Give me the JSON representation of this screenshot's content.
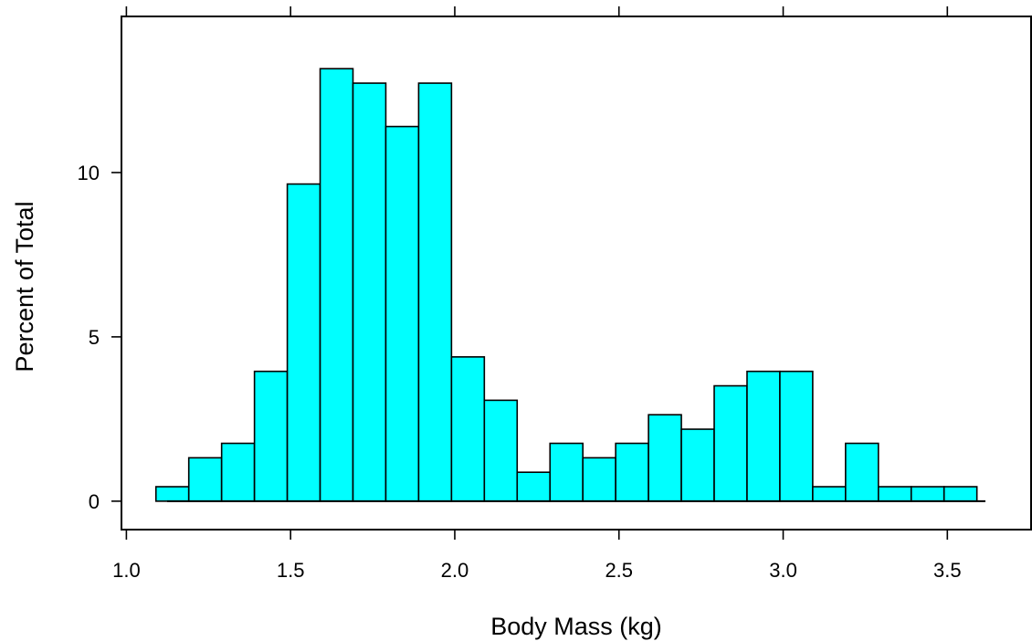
{
  "chart_data": {
    "type": "bar",
    "title": "",
    "xlabel": "Body Mass (kg)",
    "ylabel": "Percent of Total",
    "xlim": [
      0.985,
      3.755
    ],
    "ylim": [
      -0.865,
      14.75
    ],
    "xticks": [
      1.0,
      1.5,
      2.0,
      2.5,
      3.0,
      3.5
    ],
    "xtick_labels": [
      "1.0",
      "1.5",
      "2.0",
      "2.5",
      "3.0",
      "3.5"
    ],
    "yticks": [
      0,
      5,
      10
    ],
    "ytick_labels": [
      "0",
      "5",
      "10"
    ],
    "grid": false,
    "legend": "none",
    "bar_color": "#00FFFF",
    "edge_color": "#000000",
    "bin_edges": [
      1.09,
      1.19,
      1.29,
      1.39,
      1.49,
      1.59,
      1.69,
      1.79,
      1.89,
      1.99,
      2.09,
      2.19,
      2.29,
      2.39,
      2.49,
      2.59,
      2.69,
      2.79,
      2.89,
      2.99,
      3.09,
      3.19,
      3.29,
      3.39,
      3.49,
      3.59
    ],
    "values": [
      0.44,
      1.32,
      1.76,
      3.95,
      9.65,
      13.16,
      12.72,
      11.4,
      12.72,
      4.39,
      3.07,
      0.88,
      1.76,
      1.32,
      1.76,
      2.63,
      2.19,
      3.51,
      3.95,
      3.95,
      0.44,
      1.76,
      0.44,
      0.44,
      0.44
    ]
  }
}
